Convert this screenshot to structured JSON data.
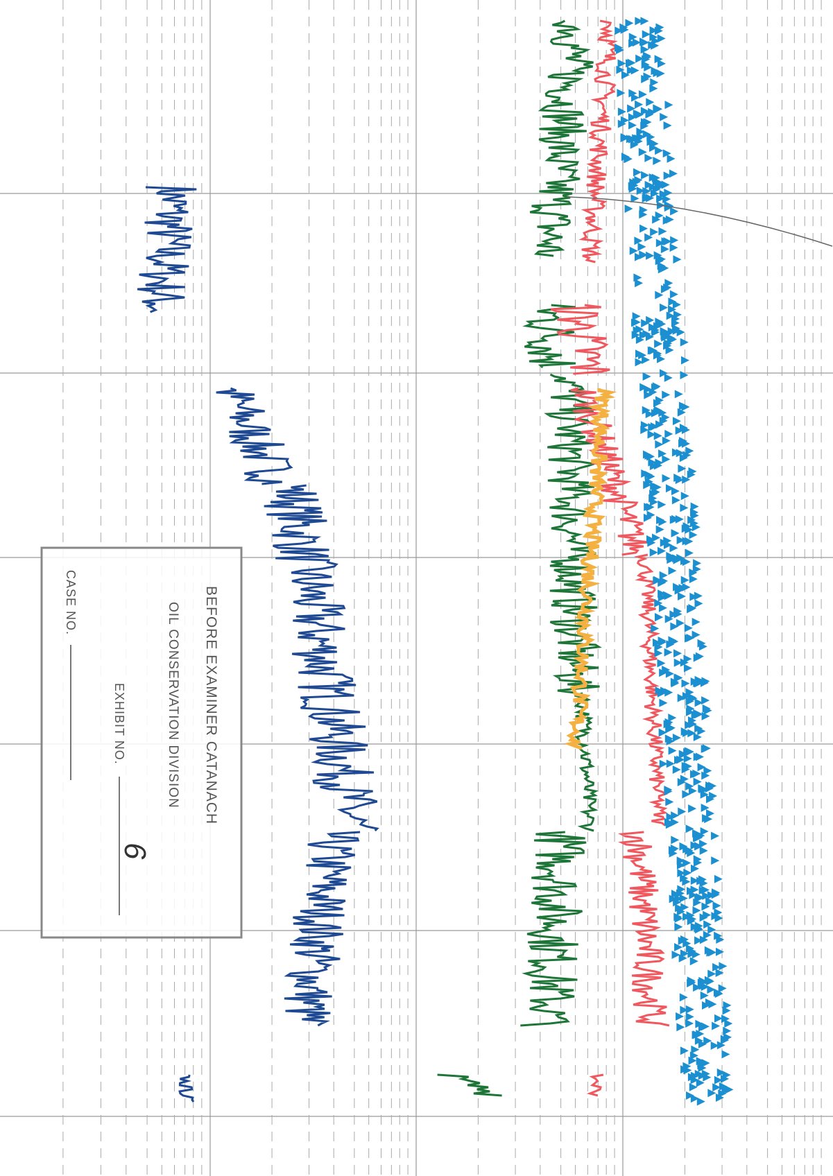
{
  "stamp": {
    "line1": "BEFORE EXAMINER CATANACH",
    "line2": "OIL CONSERVATION DIVISION",
    "exhibit_label": "EXHIBIT NO.",
    "exhibit_number": "6",
    "case_label": "CASE NO."
  }
}
